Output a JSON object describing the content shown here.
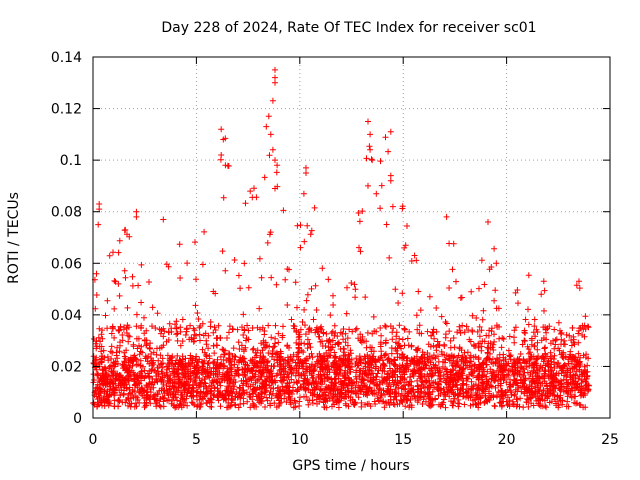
{
  "chart_data": {
    "type": "scatter",
    "title": "Day 228 of 2024, Rate Of TEC Index for receiver sc01",
    "xlabel": "GPS time / hours",
    "ylabel": "ROTI / TECUs",
    "xlim": [
      0,
      25
    ],
    "ylim": [
      0,
      0.14
    ],
    "x_ticks": [
      0,
      5,
      10,
      15,
      20,
      25
    ],
    "x_tick_labels": [
      "0",
      "5",
      "10",
      "15",
      "20",
      "25"
    ],
    "y_ticks": [
      0,
      0.02,
      0.04,
      0.06,
      0.08,
      0.1,
      0.12,
      0.14
    ],
    "y_tick_labels": [
      "0",
      "0.02",
      "0.04",
      "0.06",
      "0.08",
      "0.1",
      "0.12",
      "0.14"
    ],
    "grid": true,
    "marker": "+",
    "marker_color": "#ff0000",
    "data_range": [
      0,
      24
    ],
    "baseline_roti": 0.012,
    "envelope": [
      {
        "x": 0.0,
        "y": 0.05
      },
      {
        "x": 0.3,
        "y": 0.083
      },
      {
        "x": 1.0,
        "y": 0.07
      },
      {
        "x": 2.0,
        "y": 0.08
      },
      {
        "x": 3.0,
        "y": 0.05
      },
      {
        "x": 3.4,
        "y": 0.077
      },
      {
        "x": 4.5,
        "y": 0.068
      },
      {
        "x": 5.5,
        "y": 0.075
      },
      {
        "x": 6.3,
        "y": 0.112
      },
      {
        "x": 7.5,
        "y": 0.088
      },
      {
        "x": 8.8,
        "y": 0.135
      },
      {
        "x": 9.5,
        "y": 0.06
      },
      {
        "x": 10.3,
        "y": 0.097
      },
      {
        "x": 11.5,
        "y": 0.06
      },
      {
        "x": 12.5,
        "y": 0.06
      },
      {
        "x": 13.3,
        "y": 0.115
      },
      {
        "x": 14.4,
        "y": 0.111
      },
      {
        "x": 15.5,
        "y": 0.068
      },
      {
        "x": 16.5,
        "y": 0.072
      },
      {
        "x": 17.2,
        "y": 0.078
      },
      {
        "x": 18.0,
        "y": 0.045
      },
      {
        "x": 19.2,
        "y": 0.076
      },
      {
        "x": 20.0,
        "y": 0.045
      },
      {
        "x": 20.5,
        "y": 0.058
      },
      {
        "x": 21.8,
        "y": 0.053
      },
      {
        "x": 22.5,
        "y": 0.04
      },
      {
        "x": 23.5,
        "y": 0.053
      },
      {
        "x": 24.0,
        "y": 0.045
      }
    ],
    "notable_points": [
      {
        "x": 0.3,
        "y": 0.083
      },
      {
        "x": 0.3,
        "y": 0.081
      },
      {
        "x": 0.25,
        "y": 0.075
      },
      {
        "x": 2.1,
        "y": 0.08
      },
      {
        "x": 2.1,
        "y": 0.078
      },
      {
        "x": 3.4,
        "y": 0.077
      },
      {
        "x": 6.2,
        "y": 0.112
      },
      {
        "x": 6.3,
        "y": 0.108
      },
      {
        "x": 6.2,
        "y": 0.102
      },
      {
        "x": 6.4,
        "y": 0.098
      },
      {
        "x": 7.6,
        "y": 0.088
      },
      {
        "x": 8.5,
        "y": 0.117
      },
      {
        "x": 8.8,
        "y": 0.135
      },
      {
        "x": 8.8,
        "y": 0.132
      },
      {
        "x": 8.8,
        "y": 0.13
      },
      {
        "x": 8.7,
        "y": 0.123
      },
      {
        "x": 8.6,
        "y": 0.11
      },
      {
        "x": 8.7,
        "y": 0.104
      },
      {
        "x": 8.8,
        "y": 0.1
      },
      {
        "x": 8.9,
        "y": 0.098
      },
      {
        "x": 8.8,
        "y": 0.089
      },
      {
        "x": 10.3,
        "y": 0.097
      },
      {
        "x": 10.3,
        "y": 0.095
      },
      {
        "x": 10.2,
        "y": 0.087
      },
      {
        "x": 13.3,
        "y": 0.115
      },
      {
        "x": 13.4,
        "y": 0.11
      },
      {
        "x": 13.4,
        "y": 0.104
      },
      {
        "x": 13.5,
        "y": 0.1
      },
      {
        "x": 13.3,
        "y": 0.09
      },
      {
        "x": 13.7,
        "y": 0.087
      },
      {
        "x": 14.4,
        "y": 0.111
      },
      {
        "x": 14.4,
        "y": 0.094
      },
      {
        "x": 14.4,
        "y": 0.092
      },
      {
        "x": 14.5,
        "y": 0.082
      },
      {
        "x": 17.1,
        "y": 0.078
      },
      {
        "x": 19.1,
        "y": 0.076
      },
      {
        "x": 19.5,
        "y": 0.06
      },
      {
        "x": 21.8,
        "y": 0.053
      },
      {
        "x": 23.5,
        "y": 0.053
      }
    ]
  }
}
